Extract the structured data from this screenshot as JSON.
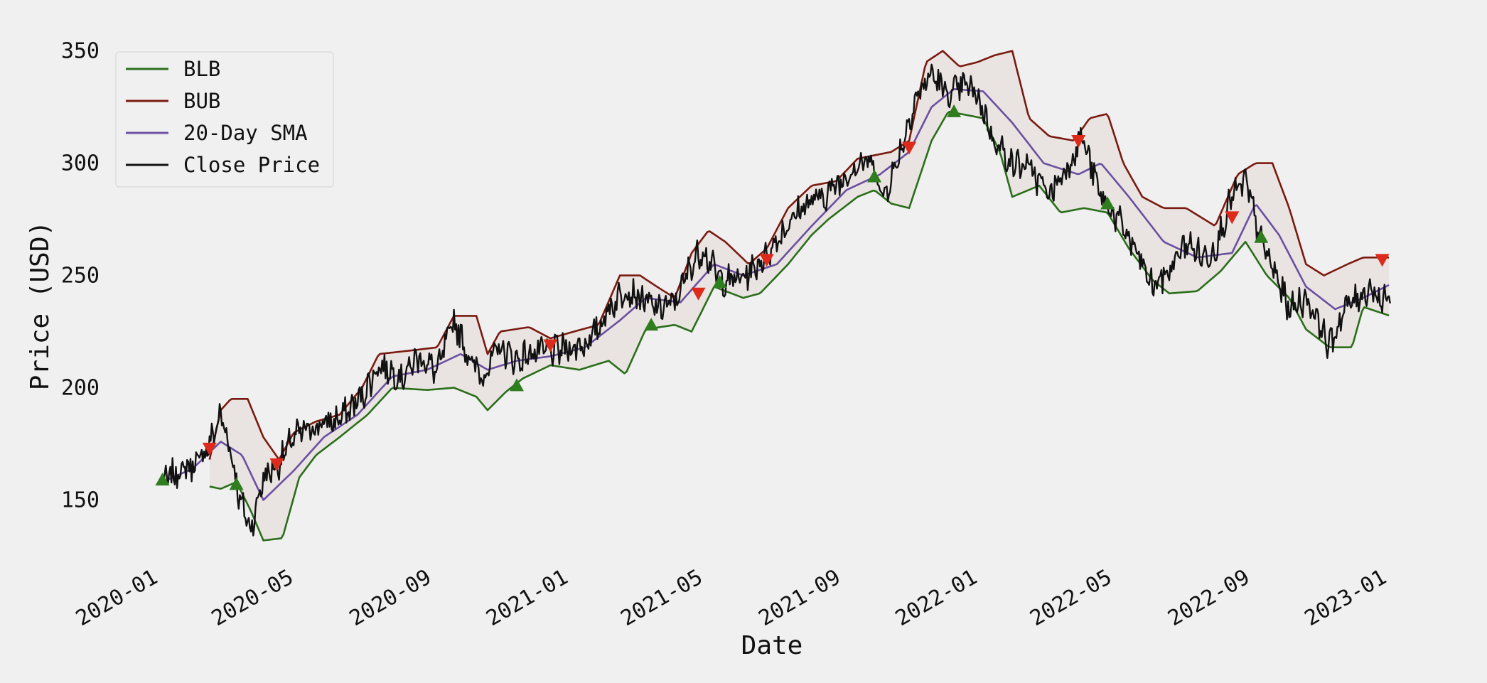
{
  "chart_data": {
    "type": "line",
    "title": "",
    "xlabel": "Date",
    "ylabel": "Price (USD)",
    "x_ticks": [
      "2020-01",
      "2020-05",
      "2020-09",
      "2021-01",
      "2021-05",
      "2021-09",
      "2022-01",
      "2022-05",
      "2022-09",
      "2023-01"
    ],
    "y_ticks": [
      150,
      200,
      250,
      300,
      350
    ],
    "xlim": [
      "2019-12-20",
      "2023-01-12"
    ],
    "ylim": [
      122,
      360
    ],
    "grid": false,
    "legend_position": "top-left",
    "band_fill": "#e8e2de",
    "series": [
      {
        "name": "BLB",
        "color": "#2a6e1a"
      },
      {
        "name": "BUB",
        "color": "#7a1a10"
      },
      {
        "name": "20-Day SMA",
        "color": "#6a4fa0"
      },
      {
        "name": "Close Price",
        "color": "#111111"
      }
    ],
    "close_keypoints": [
      [
        "2020-01-09",
        158
      ],
      [
        "2020-01-25",
        163
      ],
      [
        "2020-02-10",
        167
      ],
      [
        "2020-02-20",
        175
      ],
      [
        "2020-03-01",
        188
      ],
      [
        "2020-03-10",
        172
      ],
      [
        "2020-03-18",
        150
      ],
      [
        "2020-03-28",
        137
      ],
      [
        "2020-04-08",
        160
      ],
      [
        "2020-04-22",
        166
      ],
      [
        "2020-05-05",
        178
      ],
      [
        "2020-05-25",
        183
      ],
      [
        "2020-06-15",
        186
      ],
      [
        "2020-07-05",
        196
      ],
      [
        "2020-07-20",
        210
      ],
      [
        "2020-08-10",
        205
      ],
      [
        "2020-08-25",
        214
      ],
      [
        "2020-09-10",
        207
      ],
      [
        "2020-09-25",
        230
      ],
      [
        "2020-10-10",
        212
      ],
      [
        "2020-10-20",
        205
      ],
      [
        "2020-11-05",
        218
      ],
      [
        "2020-11-20",
        212
      ],
      [
        "2020-12-05",
        216
      ],
      [
        "2020-12-20",
        216
      ],
      [
        "2021-01-10",
        218
      ],
      [
        "2021-01-25",
        221
      ],
      [
        "2021-02-10",
        235
      ],
      [
        "2021-02-25",
        244
      ],
      [
        "2021-03-10",
        240
      ],
      [
        "2021-03-25",
        235
      ],
      [
        "2021-04-10",
        238
      ],
      [
        "2021-04-25",
        255
      ],
      [
        "2021-05-05",
        262
      ],
      [
        "2021-05-20",
        248
      ],
      [
        "2021-06-05",
        248
      ],
      [
        "2021-06-20",
        253
      ],
      [
        "2021-07-05",
        262
      ],
      [
        "2021-07-20",
        273
      ],
      [
        "2021-08-05",
        282
      ],
      [
        "2021-08-20",
        285
      ],
      [
        "2021-09-05",
        292
      ],
      [
        "2021-09-20",
        300
      ],
      [
        "2021-10-05",
        300
      ],
      [
        "2021-10-12",
        284
      ],
      [
        "2021-10-25",
        300
      ],
      [
        "2021-11-10",
        328
      ],
      [
        "2021-11-25",
        340
      ],
      [
        "2021-12-10",
        330
      ],
      [
        "2021-12-25",
        335
      ],
      [
        "2022-01-05",
        330
      ],
      [
        "2022-01-20",
        310
      ],
      [
        "2022-02-05",
        300
      ],
      [
        "2022-02-20",
        298
      ],
      [
        "2022-03-10",
        286
      ],
      [
        "2022-03-28",
        300
      ],
      [
        "2022-04-08",
        312
      ],
      [
        "2022-04-25",
        285
      ],
      [
        "2022-05-10",
        275
      ],
      [
        "2022-05-25",
        262
      ],
      [
        "2022-06-10",
        245
      ],
      [
        "2022-06-25",
        252
      ],
      [
        "2022-07-10",
        265
      ],
      [
        "2022-07-25",
        258
      ],
      [
        "2022-08-05",
        262
      ],
      [
        "2022-08-20",
        285
      ],
      [
        "2022-09-01",
        292
      ],
      [
        "2022-09-15",
        265
      ],
      [
        "2022-09-28",
        250
      ],
      [
        "2022-10-10",
        235
      ],
      [
        "2022-10-25",
        240
      ],
      [
        "2022-11-05",
        230
      ],
      [
        "2022-11-15",
        218
      ],
      [
        "2022-11-28",
        235
      ],
      [
        "2022-12-10",
        240
      ],
      [
        "2022-12-22",
        245
      ],
      [
        "2023-01-01",
        238
      ],
      [
        "2023-01-08",
        240
      ]
    ],
    "sma_keypoints": [
      [
        "2020-01-09",
        158
      ],
      [
        "2020-02-05",
        164
      ],
      [
        "2020-03-01",
        176
      ],
      [
        "2020-03-20",
        170
      ],
      [
        "2020-04-08",
        150
      ],
      [
        "2020-05-05",
        163
      ],
      [
        "2020-06-01",
        178
      ],
      [
        "2020-07-01",
        188
      ],
      [
        "2020-08-01",
        205
      ],
      [
        "2020-09-01",
        208
      ],
      [
        "2020-10-01",
        215
      ],
      [
        "2020-10-25",
        208
      ],
      [
        "2020-11-20",
        212
      ],
      [
        "2020-12-20",
        214
      ],
      [
        "2021-01-20",
        218
      ],
      [
        "2021-02-20",
        230
      ],
      [
        "2021-03-15",
        240
      ],
      [
        "2021-04-15",
        238
      ],
      [
        "2021-05-15",
        255
      ],
      [
        "2021-06-10",
        250
      ],
      [
        "2021-07-10",
        255
      ],
      [
        "2021-08-10",
        272
      ],
      [
        "2021-09-10",
        288
      ],
      [
        "2021-10-10",
        295
      ],
      [
        "2021-11-05",
        305
      ],
      [
        "2021-11-25",
        325
      ],
      [
        "2021-12-15",
        333
      ],
      [
        "2022-01-10",
        332
      ],
      [
        "2022-02-05",
        318
      ],
      [
        "2022-03-05",
        300
      ],
      [
        "2022-04-05",
        295
      ],
      [
        "2022-04-25",
        300
      ],
      [
        "2022-05-20",
        285
      ],
      [
        "2022-06-20",
        265
      ],
      [
        "2022-07-20",
        258
      ],
      [
        "2022-08-20",
        260
      ],
      [
        "2022-09-10",
        282
      ],
      [
        "2022-10-01",
        268
      ],
      [
        "2022-10-25",
        245
      ],
      [
        "2022-11-20",
        235
      ],
      [
        "2022-12-15",
        240
      ],
      [
        "2023-01-08",
        246
      ]
    ],
    "bub_keypoints": [
      [
        "2020-02-20",
        168
      ],
      [
        "2020-03-01",
        190
      ],
      [
        "2020-03-10",
        195
      ],
      [
        "2020-03-25",
        195
      ],
      [
        "2020-04-08",
        178
      ],
      [
        "2020-04-22",
        168
      ],
      [
        "2020-05-05",
        180
      ],
      [
        "2020-05-25",
        185
      ],
      [
        "2020-06-15",
        188
      ],
      [
        "2020-07-05",
        200
      ],
      [
        "2020-07-20",
        215
      ],
      [
        "2020-08-25",
        217
      ],
      [
        "2020-09-10",
        218
      ],
      [
        "2020-09-25",
        232
      ],
      [
        "2020-10-15",
        232
      ],
      [
        "2020-10-25",
        215
      ],
      [
        "2020-11-05",
        225
      ],
      [
        "2020-12-01",
        227
      ],
      [
        "2020-12-20",
        222
      ],
      [
        "2021-01-10",
        225
      ],
      [
        "2021-02-01",
        228
      ],
      [
        "2021-02-20",
        250
      ],
      [
        "2021-03-10",
        250
      ],
      [
        "2021-03-25",
        245
      ],
      [
        "2021-04-10",
        240
      ],
      [
        "2021-04-25",
        260
      ],
      [
        "2021-05-10",
        270
      ],
      [
        "2021-05-25",
        265
      ],
      [
        "2021-06-15",
        255
      ],
      [
        "2021-07-01",
        262
      ],
      [
        "2021-07-20",
        280
      ],
      [
        "2021-08-10",
        290
      ],
      [
        "2021-09-01",
        292
      ],
      [
        "2021-09-20",
        302
      ],
      [
        "2021-10-20",
        305
      ],
      [
        "2021-11-05",
        310
      ],
      [
        "2021-11-20",
        345
      ],
      [
        "2021-12-05",
        350
      ],
      [
        "2021-12-20",
        343
      ],
      [
        "2022-01-05",
        345
      ],
      [
        "2022-01-20",
        348
      ],
      [
        "2022-02-05",
        350
      ],
      [
        "2022-02-20",
        320
      ],
      [
        "2022-03-10",
        312
      ],
      [
        "2022-04-01",
        310
      ],
      [
        "2022-04-15",
        320
      ],
      [
        "2022-05-01",
        322
      ],
      [
        "2022-05-15",
        300
      ],
      [
        "2022-06-01",
        285
      ],
      [
        "2022-06-20",
        280
      ],
      [
        "2022-07-10",
        280
      ],
      [
        "2022-08-05",
        272
      ],
      [
        "2022-08-25",
        295
      ],
      [
        "2022-09-10",
        300
      ],
      [
        "2022-09-25",
        300
      ],
      [
        "2022-10-10",
        280
      ],
      [
        "2022-10-25",
        255
      ],
      [
        "2022-11-10",
        250
      ],
      [
        "2022-12-01",
        255
      ],
      [
        "2022-12-15",
        258
      ],
      [
        "2023-01-08",
        258
      ]
    ],
    "blb_keypoints": [
      [
        "2020-02-20",
        156
      ],
      [
        "2020-03-01",
        155
      ],
      [
        "2020-03-15",
        158
      ],
      [
        "2020-03-28",
        145
      ],
      [
        "2020-04-08",
        132
      ],
      [
        "2020-04-25",
        133
      ],
      [
        "2020-05-10",
        160
      ],
      [
        "2020-05-25",
        170
      ],
      [
        "2020-06-15",
        178
      ],
      [
        "2020-07-10",
        188
      ],
      [
        "2020-08-01",
        200
      ],
      [
        "2020-09-01",
        199
      ],
      [
        "2020-09-25",
        200
      ],
      [
        "2020-10-15",
        196
      ],
      [
        "2020-10-25",
        190
      ],
      [
        "2020-11-10",
        198
      ],
      [
        "2020-11-25",
        204
      ],
      [
        "2020-12-20",
        210
      ],
      [
        "2021-01-15",
        208
      ],
      [
        "2021-02-10",
        212
      ],
      [
        "2021-02-25",
        206
      ],
      [
        "2021-03-15",
        226
      ],
      [
        "2021-04-10",
        228
      ],
      [
        "2021-04-25",
        225
      ],
      [
        "2021-05-15",
        245
      ],
      [
        "2021-06-10",
        240
      ],
      [
        "2021-06-25",
        242
      ],
      [
        "2021-07-20",
        255
      ],
      [
        "2021-08-10",
        268
      ],
      [
        "2021-08-25",
        275
      ],
      [
        "2021-09-20",
        285
      ],
      [
        "2021-10-05",
        288
      ],
      [
        "2021-10-20",
        282
      ],
      [
        "2021-11-05",
        280
      ],
      [
        "2021-11-25",
        310
      ],
      [
        "2021-12-10",
        323
      ],
      [
        "2022-01-10",
        320
      ],
      [
        "2022-01-25",
        305
      ],
      [
        "2022-02-05",
        285
      ],
      [
        "2022-03-01",
        290
      ],
      [
        "2022-03-20",
        278
      ],
      [
        "2022-04-10",
        280
      ],
      [
        "2022-05-01",
        278
      ],
      [
        "2022-05-20",
        262
      ],
      [
        "2022-06-10",
        248
      ],
      [
        "2022-06-25",
        242
      ],
      [
        "2022-07-20",
        243
      ],
      [
        "2022-08-10",
        252
      ],
      [
        "2022-09-01",
        265
      ],
      [
        "2022-09-20",
        250
      ],
      [
        "2022-10-10",
        240
      ],
      [
        "2022-10-25",
        226
      ],
      [
        "2022-11-15",
        218
      ],
      [
        "2022-12-05",
        218
      ],
      [
        "2022-12-15",
        236
      ],
      [
        "2023-01-08",
        232
      ]
    ],
    "buy_signals": [
      [
        "2020-01-09",
        159
      ],
      [
        "2020-03-15",
        157
      ],
      [
        "2020-11-20",
        201
      ],
      [
        "2021-03-20",
        228
      ],
      [
        "2021-05-20",
        247
      ],
      [
        "2021-10-05",
        294
      ],
      [
        "2021-12-15",
        323
      ],
      [
        "2022-05-01",
        282
      ],
      [
        "2022-09-15",
        267
      ]
    ],
    "sell_signals": [
      [
        "2020-02-20",
        173
      ],
      [
        "2020-04-20",
        166
      ],
      [
        "2020-12-20",
        219
      ],
      [
        "2021-05-01",
        242
      ],
      [
        "2021-07-01",
        257
      ],
      [
        "2021-11-05",
        307
      ],
      [
        "2022-04-05",
        310
      ],
      [
        "2022-08-20",
        276
      ],
      [
        "2023-01-01",
        257
      ]
    ],
    "buy_marker_color": "#2e7d1e",
    "sell_marker_color": "#dd2a1a"
  }
}
